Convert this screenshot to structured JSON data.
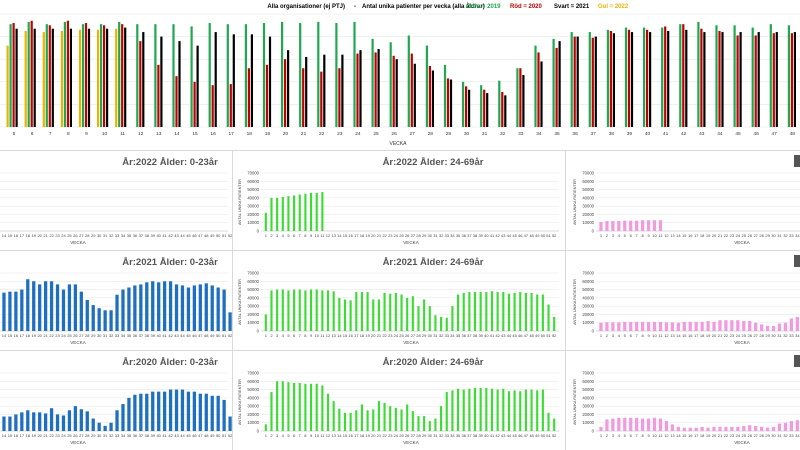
{
  "header": {
    "title": "Alla organisationer (ej PTJ)",
    "dash": "-",
    "subtitle": "Antal unika patienter per vecka (alla åldrar)",
    "legend": [
      {
        "label": "Grön = 2019",
        "color": "#1fa84f"
      },
      {
        "label": "Röd = 2020",
        "color": "#c00000"
      },
      {
        "label": "Svart = 2021",
        "color": "#000000"
      },
      {
        "label": "Gul = 2022",
        "color": "#e8b400"
      }
    ]
  },
  "chart_data": [
    {
      "type": "bar",
      "xlabel": "VECKA",
      "x": [
        5,
        6,
        7,
        8,
        9,
        10,
        11,
        12,
        13,
        14,
        15,
        16,
        17,
        18,
        19,
        20,
        21,
        22,
        23,
        24,
        25,
        26,
        27,
        28,
        29,
        30,
        31,
        32,
        33,
        34,
        35,
        36,
        37,
        38,
        39,
        40,
        41,
        42,
        43,
        44,
        45,
        46,
        47,
        48
      ],
      "ylim": [
        0,
        100
      ],
      "series": [
        {
          "name": "Grön = 2019",
          "color": "#1fa84f",
          "values": [
            91,
            93,
            91,
            93,
            91,
            91,
            93,
            91,
            91,
            91,
            89,
            92,
            91,
            91,
            92,
            93,
            92,
            93,
            92,
            93,
            78,
            75,
            81,
            72,
            55,
            40,
            37,
            41,
            52,
            72,
            78,
            84,
            84,
            86,
            88,
            88,
            88,
            91,
            93,
            90,
            90,
            88,
            91,
            90
          ]
        },
        {
          "name": "Röd = 2020",
          "color": "#c00000",
          "values": [
            92,
            94,
            90,
            94,
            92,
            90,
            91,
            76,
            55,
            45,
            40,
            37,
            38,
            52,
            55,
            60,
            52,
            49,
            52,
            65,
            66,
            63,
            65,
            54,
            43,
            36,
            33,
            31,
            52,
            66,
            70,
            80,
            79,
            85,
            86,
            86,
            89,
            91,
            87,
            85,
            81,
            81,
            83,
            83
          ]
        },
        {
          "name": "Svart = 2021",
          "color": "#000000",
          "values": [
            87,
            87,
            87,
            87,
            87,
            87,
            88,
            84,
            80,
            76,
            72,
            84,
            82,
            82,
            80,
            68,
            62,
            64,
            64,
            68,
            69,
            60,
            56,
            50,
            42,
            33,
            30,
            28,
            46,
            58,
            76,
            80,
            80,
            83,
            84,
            84,
            85,
            86,
            84,
            84,
            84,
            84,
            84,
            84
          ]
        },
        {
          "name": "Gul = 2022",
          "color": "#e8b400",
          "values": [
            72,
            85,
            84,
            85,
            86,
            86,
            87,
            null,
            null,
            null,
            null,
            null,
            null,
            null,
            null,
            null,
            null,
            null,
            null,
            null,
            null,
            null,
            null,
            null,
            null,
            null,
            null,
            null,
            null,
            null,
            null,
            null,
            null,
            null,
            null,
            null,
            null,
            null,
            null,
            null,
            null,
            null,
            null,
            null
          ]
        }
      ]
    },
    {
      "type": "bar",
      "title": "År:2022  Ålder: 0-23år",
      "xlabel": "VECKA",
      "color": "#1f6fc0",
      "x": [
        14,
        15,
        16,
        17,
        18,
        19,
        20,
        21,
        22,
        23,
        24,
        25,
        26,
        27,
        28,
        29,
        30,
        31,
        32,
        33,
        34,
        35,
        36,
        37,
        38,
        39,
        40,
        41,
        42,
        43,
        44,
        45,
        46,
        47,
        48,
        49,
        50,
        51,
        52
      ],
      "values": [
        null,
        null,
        null,
        null,
        null,
        null,
        null,
        null,
        null,
        null,
        null,
        null,
        null,
        null,
        null,
        null,
        null,
        null,
        null,
        null,
        null,
        null,
        null,
        null,
        null,
        null,
        null,
        null,
        null,
        null,
        null,
        null,
        null,
        null,
        null,
        null,
        null,
        null,
        null
      ]
    },
    {
      "type": "bar",
      "title": "År:2022  Ålder: 24-69år",
      "xlabel": "VECKA",
      "ylabel": "ANTAL UNIKA PATIENTER",
      "color": "#3ddc35",
      "yticks": [
        0,
        10000,
        20000,
        30000,
        40000,
        50000,
        60000,
        70000
      ],
      "ylim": [
        0,
        70000
      ],
      "x": [
        1,
        2,
        3,
        4,
        5,
        6,
        7,
        8,
        9,
        10,
        11,
        12,
        13,
        14,
        15,
        16,
        17,
        18,
        19,
        20,
        21,
        22,
        23,
        24,
        25,
        26,
        27,
        28,
        29,
        30,
        31,
        32,
        33,
        34,
        35,
        36,
        37,
        38,
        39,
        40,
        41,
        42,
        43,
        44,
        45,
        46,
        47,
        48,
        49,
        50,
        51,
        52
      ],
      "values": [
        22000,
        40000,
        40000,
        41000,
        42000,
        43000,
        44000,
        45000,
        46000,
        46000,
        47000,
        null,
        null,
        null,
        null,
        null,
        null,
        null,
        null,
        null,
        null,
        null,
        null,
        null,
        null,
        null,
        null,
        null,
        null,
        null,
        null,
        null,
        null,
        null,
        null,
        null,
        null,
        null,
        null,
        null,
        null,
        null,
        null,
        null,
        null,
        null,
        null,
        null,
        null,
        null,
        null,
        null
      ]
    },
    {
      "type": "bar",
      "xlabel": "VECKA",
      "ylabel": "ANTAL UNIKA PATIENTER",
      "color": "#f29ae0",
      "yticks": [
        0,
        10000,
        20000,
        30000,
        40000,
        50000,
        60000,
        70000
      ],
      "ylim": [
        0,
        70000
      ],
      "x": [
        1,
        2,
        3,
        4,
        5,
        6,
        7,
        8,
        9,
        10,
        11,
        12,
        13,
        14,
        15,
        16,
        17,
        18,
        19,
        20,
        21,
        22,
        23,
        24,
        25,
        26,
        27,
        28,
        29,
        30,
        31,
        32,
        33,
        34
      ],
      "values": [
        11000,
        12000,
        12000,
        12000,
        12500,
        12500,
        12500,
        13000,
        13000,
        13000,
        13000,
        null,
        null,
        null,
        null,
        null,
        null,
        null,
        null,
        null,
        null,
        null,
        null,
        null,
        null,
        null,
        null,
        null,
        null,
        null,
        null,
        null,
        null,
        null
      ]
    },
    {
      "type": "bar",
      "title": "År:2021  Ålder: 0-23år",
      "xlabel": "VECKA",
      "color": "#1f6fc0",
      "x": [
        14,
        15,
        16,
        17,
        18,
        19,
        20,
        21,
        22,
        23,
        24,
        25,
        26,
        27,
        28,
        29,
        30,
        31,
        32,
        33,
        34,
        35,
        36,
        37,
        38,
        39,
        40,
        41,
        42,
        43,
        44,
        45,
        46,
        47,
        48,
        49,
        50,
        51,
        52
      ],
      "values": [
        37,
        38,
        38,
        40,
        50,
        48,
        45,
        48,
        48,
        45,
        40,
        45,
        45,
        38,
        30,
        25,
        22,
        20,
        20,
        35,
        40,
        42,
        44,
        45,
        47,
        48,
        47,
        48,
        48,
        45,
        44,
        42,
        44,
        45,
        46,
        44,
        42,
        40,
        18
      ]
    },
    {
      "type": "bar",
      "title": "År:2021  Ålder: 24-69år",
      "xlabel": "VECKA",
      "ylabel": "ANTAL UNIKA PATIENTER",
      "color": "#3ddc35",
      "yticks": [
        0,
        10000,
        20000,
        30000,
        40000,
        50000,
        60000,
        70000
      ],
      "ylim": [
        0,
        70000
      ],
      "x": [
        1,
        2,
        3,
        4,
        5,
        6,
        7,
        8,
        9,
        10,
        11,
        12,
        13,
        14,
        15,
        16,
        17,
        18,
        19,
        20,
        21,
        22,
        23,
        24,
        25,
        26,
        27,
        28,
        29,
        30,
        31,
        32,
        33,
        34,
        35,
        36,
        37,
        38,
        39,
        40,
        41,
        42,
        43,
        44,
        45,
        46,
        47,
        48,
        49,
        50,
        51,
        52
      ],
      "values": [
        20000,
        49000,
        50000,
        50000,
        49000,
        50000,
        50000,
        49000,
        50000,
        50000,
        49000,
        49000,
        48000,
        40000,
        38000,
        37000,
        47000,
        47000,
        47000,
        38000,
        38000,
        46000,
        45000,
        46000,
        44000,
        40000,
        42000,
        30000,
        38000,
        30000,
        19000,
        17000,
        16000,
        30000,
        44000,
        46000,
        47000,
        47000,
        47000,
        47000,
        48000,
        47000,
        47000,
        45000,
        46000,
        47000,
        46000,
        46000,
        44000,
        44000,
        32000,
        17000
      ]
    },
    {
      "type": "bar",
      "xlabel": "VECKA",
      "ylabel": "ANTAL UNIKA PATIENTER",
      "color": "#f29ae0",
      "yticks": [
        0,
        10000,
        20000,
        30000,
        40000,
        50000,
        60000,
        70000
      ],
      "ylim": [
        0,
        70000
      ],
      "x": [
        1,
        2,
        3,
        4,
        5,
        6,
        7,
        8,
        9,
        10,
        11,
        12,
        13,
        14,
        15,
        16,
        17,
        18,
        19,
        20,
        21,
        22,
        23,
        24,
        25,
        26,
        27,
        28,
        29,
        30,
        31,
        32,
        33,
        34
      ],
      "values": [
        10000,
        10500,
        10500,
        10500,
        11000,
        11000,
        11000,
        11000,
        11000,
        11000,
        11000,
        10500,
        10500,
        10000,
        11000,
        11000,
        11000,
        11000,
        12000,
        11000,
        13000,
        13000,
        13000,
        13000,
        12000,
        12000,
        10000,
        8000,
        6000,
        6000,
        9000,
        10000,
        15000,
        17000
      ]
    },
    {
      "type": "bar",
      "title": "År:2020  Ålder: 0-23år",
      "xlabel": "VECKA",
      "color": "#1f6fc0",
      "x": [
        14,
        15,
        16,
        17,
        18,
        19,
        20,
        21,
        22,
        23,
        24,
        25,
        26,
        27,
        28,
        29,
        30,
        31,
        32,
        33,
        34,
        35,
        36,
        37,
        38,
        39,
        40,
        41,
        42,
        43,
        44,
        45,
        46,
        47,
        48,
        49,
        50,
        51,
        52,
        53
      ],
      "values": [
        14,
        14,
        16,
        18,
        20,
        18,
        18,
        17,
        22,
        16,
        15,
        20,
        24,
        21,
        19,
        12,
        8,
        5,
        8,
        20,
        26,
        32,
        35,
        36,
        36,
        38,
        38,
        38,
        40,
        40,
        40,
        38,
        38,
        36,
        36,
        34,
        34,
        30,
        14,
        6
      ]
    },
    {
      "type": "bar",
      "title": "År:2020  Ålder: 24-69år",
      "xlabel": "VECKA",
      "ylabel": "ANTAL UNIKA PATIENTER",
      "color": "#3ddc35",
      "yticks": [
        0,
        10000,
        20000,
        30000,
        40000,
        50000,
        60000,
        70000
      ],
      "ylim": [
        0,
        70000
      ],
      "x": [
        1,
        2,
        3,
        4,
        5,
        6,
        7,
        8,
        9,
        10,
        11,
        12,
        13,
        14,
        15,
        16,
        17,
        18,
        19,
        20,
        21,
        22,
        23,
        24,
        25,
        26,
        27,
        28,
        29,
        30,
        31,
        32,
        33,
        34,
        35,
        36,
        37,
        38,
        39,
        40,
        41,
        42,
        43,
        44,
        45,
        46,
        47,
        48,
        49,
        50,
        51,
        52
      ],
      "values": [
        8000,
        47000,
        60000,
        60000,
        59000,
        58000,
        58000,
        57000,
        57000,
        57000,
        55000,
        45000,
        36000,
        27000,
        22000,
        22000,
        25000,
        32000,
        25000,
        26000,
        36000,
        34000,
        30000,
        28000,
        26000,
        32000,
        24000,
        18000,
        18000,
        12000,
        15000,
        30000,
        47000,
        49000,
        51000,
        50000,
        51000,
        52000,
        52000,
        52000,
        51000,
        50000,
        51000,
        48000,
        49000,
        48000,
        50000,
        50000,
        49000,
        50000,
        22000,
        15000
      ]
    },
    {
      "type": "bar",
      "xlabel": "VECKA",
      "ylabel": "ANTAL UNIKA PATIENTER",
      "color": "#f29ae0",
      "yticks": [
        0,
        10000,
        20000,
        30000,
        40000,
        50000,
        60000,
        70000
      ],
      "ylim": [
        0,
        70000
      ],
      "x": [
        1,
        2,
        3,
        4,
        5,
        6,
        7,
        8,
        9,
        10,
        11,
        12,
        13,
        14,
        15,
        16,
        17,
        18,
        19,
        20,
        21,
        22,
        23,
        24,
        25,
        26,
        27,
        28,
        29,
        30,
        31,
        32,
        33,
        34
      ],
      "values": [
        5000,
        14000,
        15000,
        16000,
        16000,
        16000,
        16000,
        15000,
        15000,
        16000,
        15000,
        12000,
        8000,
        5000,
        4000,
        4000,
        4000,
        5000,
        4000,
        5000,
        5000,
        5000,
        5000,
        5000,
        6000,
        7000,
        6000,
        5000,
        4000,
        5000,
        9000,
        10000,
        12000,
        13000
      ]
    }
  ]
}
